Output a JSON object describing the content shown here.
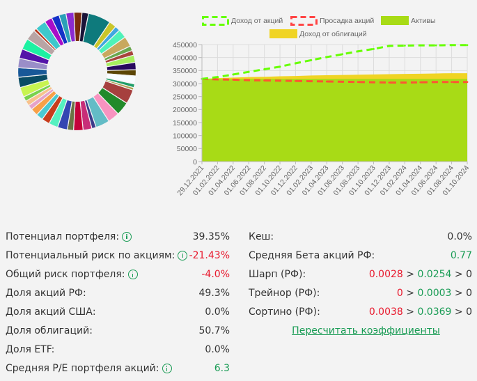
{
  "donut": {
    "slices": [
      {
        "color": "#8b2ad0",
        "value": 2.2
      },
      {
        "color": "#7a2a0c",
        "value": 2.2
      },
      {
        "color": "#1a1338",
        "value": 1.8
      },
      {
        "color": "#0e7a7c",
        "value": 6.2
      },
      {
        "color": "#c9c62a",
        "value": 2.0
      },
      {
        "color": "#3fa8e0",
        "value": 1.4
      },
      {
        "color": "#4ef2b8",
        "value": 2.4
      },
      {
        "color": "#c8a85e",
        "value": 2.8
      },
      {
        "color": "#6aa84f",
        "value": 1.3
      },
      {
        "color": "#a8443c",
        "value": 1.3
      },
      {
        "color": "#a6ee5e",
        "value": 2.0
      },
      {
        "color": "#280a5e",
        "value": 2.0
      },
      {
        "color": "#5c4606",
        "value": 1.7
      },
      {
        "color": "#f8fcff",
        "value": 2.2
      },
      {
        "color": "#1f9e68",
        "value": 1.0
      },
      {
        "color": "#b0a050",
        "value": 0.7
      },
      {
        "color": "#a6403e",
        "value": 3.9
      },
      {
        "color": "#228a2a",
        "value": 3.7
      },
      {
        "color": "#f893c0",
        "value": 3.2
      },
      {
        "color": "#63bcc6",
        "value": 3.8
      },
      {
        "color": "#3c3c8a",
        "value": 1.2
      },
      {
        "color": "#c82e78",
        "value": 2.4
      },
      {
        "color": "#c4003a",
        "value": 2.6
      },
      {
        "color": "#6a7244",
        "value": 1.7
      },
      {
        "color": "#3445b2",
        "value": 2.7
      },
      {
        "color": "#55f0c0",
        "value": 2.5
      },
      {
        "color": "#c83c1c",
        "value": 2.2
      },
      {
        "color": "#4ac9d2",
        "value": 1.9
      },
      {
        "color": "#f8a048",
        "value": 2.0
      },
      {
        "color": "#e6a2c8",
        "value": 1.3
      },
      {
        "color": "#f8c28c",
        "value": 1.4
      },
      {
        "color": "#78d24c",
        "value": 1.3
      },
      {
        "color": "#c8f450",
        "value": 2.7
      },
      {
        "color": "#0a4c64",
        "value": 2.8
      },
      {
        "color": "#185898",
        "value": 2.6
      },
      {
        "color": "#9a8ec8",
        "value": 2.6
      },
      {
        "color": "#5414a8",
        "value": 2.6
      },
      {
        "color": "#1cf2a2",
        "value": 3.0
      },
      {
        "color": "#b8a4a4",
        "value": 2.9
      },
      {
        "color": "#b83c22",
        "value": 0.8
      },
      {
        "color": "#3ec8cc",
        "value": 3.0
      },
      {
        "color": "#a80ec8",
        "value": 2.1
      },
      {
        "color": "#1431c8",
        "value": 2.1
      },
      {
        "color": "#2aa0b8",
        "value": 1.9
      }
    ]
  },
  "chart_data": {
    "type": "area",
    "title": "",
    "xlabel": "",
    "ylabel": "",
    "ylim": [
      0,
      450000
    ],
    "yticks": [
      "450000",
      "400000",
      "350000",
      "300000",
      "250000",
      "200000",
      "150000",
      "100000",
      "50000",
      "0"
    ],
    "yticks_values": [
      450000,
      400000,
      350000,
      300000,
      250000,
      200000,
      150000,
      100000,
      50000,
      0
    ],
    "categories": [
      "29.12.2021",
      "01.02.2022",
      "01.04.2022",
      "01.06.2022",
      "01.08.2022",
      "01.10.2022",
      "01.12.2022",
      "01.02.2023",
      "01.04.2023",
      "01.06.2023",
      "01.08.2023",
      "01.10.2023",
      "01.12.2023",
      "01.02.2024",
      "01.04.2024",
      "01.06.2024",
      "01.08.2024",
      "01.10.2024"
    ],
    "grid": true,
    "legend_position": "top",
    "series": [
      {
        "name": "Доход от акций",
        "kind": "dashed-line",
        "color": "#66ff00",
        "values": [
          318000,
          325000,
          335000,
          345000,
          355000,
          365000,
          378000,
          390000,
          402000,
          413000,
          424000,
          433000,
          445000,
          446000,
          447000,
          447000,
          448000,
          448000
        ]
      },
      {
        "name": "Просадка акций",
        "kind": "dashed-line",
        "color": "#ff5533",
        "values": [
          318000,
          316000,
          315000,
          313000,
          312000,
          311000,
          310000,
          309000,
          308000,
          307000,
          306000,
          305000,
          304000,
          304000,
          305000,
          306000,
          306000,
          306000
        ]
      },
      {
        "name": "Активы",
        "kind": "area",
        "color": "#a8db16",
        "values": [
          318000,
          318000,
          318000,
          318000,
          318000,
          318000,
          318000,
          318000,
          318000,
          318000,
          318000,
          318000,
          318000,
          318000,
          318000,
          318000,
          318000,
          318000
        ]
      },
      {
        "name": "Доход от облигаций",
        "kind": "area",
        "color": "#f0d424",
        "values": [
          318000,
          321000,
          323000,
          325000,
          326000,
          328000,
          329000,
          331000,
          332000,
          333000,
          334000,
          335000,
          336000,
          337000,
          338000,
          339000,
          340000,
          340000
        ]
      }
    ]
  },
  "stats_left": [
    {
      "label": "Потенциал портфеля:",
      "info": true,
      "value": "39.35%",
      "tone": "dark"
    },
    {
      "label": "Потенциальный риск по акциям:",
      "info": true,
      "value": "-21.43%",
      "tone": "red"
    },
    {
      "label": "Общий риск портфеля:",
      "info": true,
      "value": "-4.0%",
      "tone": "red"
    },
    {
      "label": "Доля акций РФ:",
      "info": false,
      "value": "49.3%",
      "tone": "dark"
    },
    {
      "label": "Доля акций США:",
      "info": false,
      "value": "0.0%",
      "tone": "dark"
    },
    {
      "label": "Доля облигаций:",
      "info": false,
      "value": "50.7%",
      "tone": "dark"
    },
    {
      "label": "Доля ETF:",
      "info": false,
      "value": "0.0%",
      "tone": "dark"
    },
    {
      "label": "Средняя P/E портфеля акций:",
      "info": true,
      "value": "6.3",
      "tone": "green"
    }
  ],
  "stats_right": {
    "cash": {
      "label": "Кеш:",
      "value": "0.0%"
    },
    "beta": {
      "label": "Средняя Бета акций РФ:",
      "value": "0.77"
    },
    "sharpe": {
      "label": "Шарп (РФ):",
      "a": "0.0028",
      "sep1": " > ",
      "b": "0.0254",
      "sep2": " > 0"
    },
    "treynor": {
      "label": "Трейнор (РФ):",
      "a": "0",
      "sep1": " > ",
      "b": "0.0003",
      "sep2": " > 0"
    },
    "sortino": {
      "label": "Сортино (РФ):",
      "a": "0.0038",
      "sep1": " > ",
      "b": "0.0369",
      "sep2": " > 0"
    },
    "recalc_link": "Пересчитать коэффициенты"
  }
}
